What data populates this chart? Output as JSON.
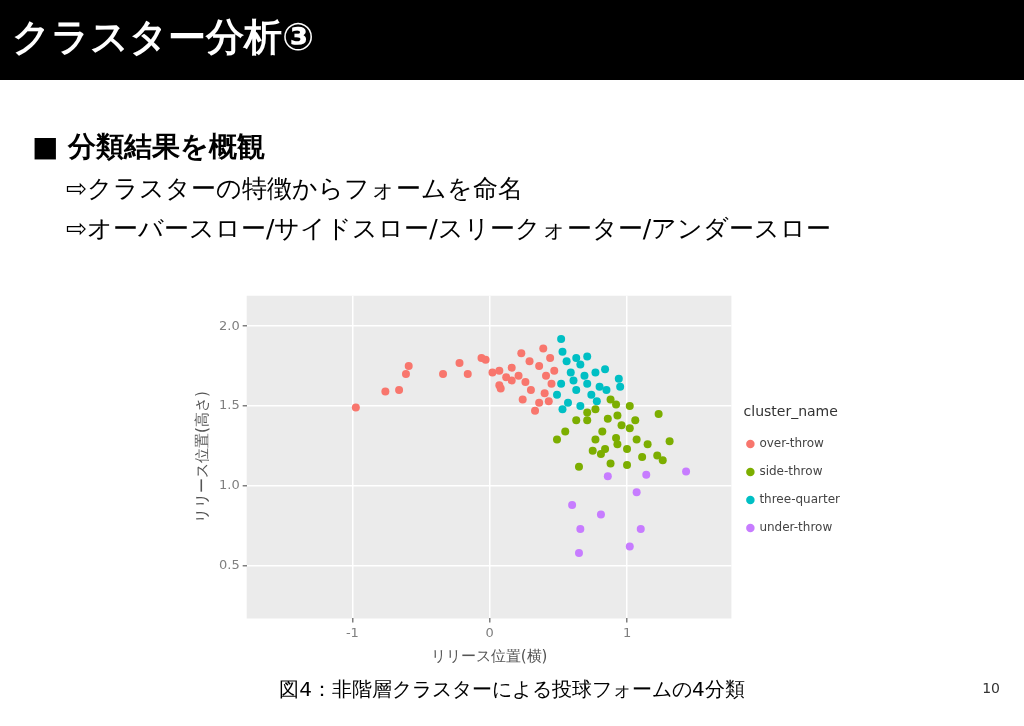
{
  "chart_data": {
    "type": "scatter",
    "title": "クラスター分析③",
    "subtitle": "■ 分類結果を概観",
    "annotations": [
      "⇨クラスターの特徴からフォームを命名",
      "⇨オーバースロー/サイドスロー/スリークォーター/アンダースロー",
      "図4：非階層クラスターによる投球フォームの4分類",
      "10"
    ],
    "xlabel": "リリース位置(横)",
    "ylabel": "リリース位置(高さ)",
    "legend_title": "cluster_name",
    "legend": "right",
    "grid": true,
    "marker": "circle",
    "xlim": [
      -1.77,
      1.76
    ],
    "xticks": [
      -1,
      0,
      1
    ],
    "ylim": [
      0.17,
      2.19
    ],
    "yticks": [
      0.5,
      {
        "value": 1,
        "label": "1.0"
      },
      1.5,
      {
        "value": 2,
        "label": "2.0"
      }
    ],
    "series": [
      {
        "name": "over-throw",
        "color": "#f8766d",
        "x": [
          -0.975,
          -0.76,
          -0.66,
          -0.61,
          -0.59,
          -0.34,
          -0.22,
          -0.16,
          -0.06,
          -0.03,
          0.02,
          0.07,
          0.07,
          0.08,
          0.16,
          0.23,
          0.39,
          0.16,
          0.24,
          0.33,
          0.36,
          0.3,
          0.41,
          0.44,
          0.29,
          0.21,
          0.4,
          0.45,
          0.36,
          0.26,
          0.43,
          0.12,
          0.47
        ],
        "values": [
          1.49,
          1.59,
          1.6,
          1.7,
          1.75,
          1.7,
          1.77,
          1.7,
          1.8,
          1.79,
          1.71,
          1.72,
          1.63,
          1.61,
          1.74,
          1.83,
          1.86,
          1.66,
          1.54,
          1.47,
          1.52,
          1.6,
          1.69,
          1.8,
          1.78,
          1.69,
          1.58,
          1.64,
          1.75,
          1.65,
          1.53,
          1.68,
          1.72
        ]
      },
      {
        "name": "side-throw",
        "color": "#7cae00",
        "x": [
          0.49,
          0.55,
          0.63,
          0.65,
          0.71,
          0.75,
          0.77,
          0.81,
          0.84,
          0.86,
          0.88,
          0.82,
          0.88,
          0.92,
          0.93,
          0.92,
          0.93,
          1.0,
          1.0,
          1.02,
          1.02,
          1.06,
          1.07,
          1.15,
          1.11,
          1.22,
          1.26,
          1.23,
          1.31,
          0.77,
          0.71,
          0.96
        ],
        "values": [
          1.29,
          1.34,
          1.41,
          1.12,
          1.41,
          1.22,
          1.29,
          1.2,
          1.23,
          1.42,
          1.14,
          1.34,
          1.54,
          1.51,
          1.44,
          1.3,
          1.26,
          1.23,
          1.13,
          1.5,
          1.36,
          1.41,
          1.29,
          1.26,
          1.18,
          1.19,
          1.16,
          1.45,
          1.28,
          1.48,
          1.46,
          1.38
        ]
      },
      {
        "name": "three-quarter",
        "color": "#00bfc4",
        "x": [
          0.52,
          0.53,
          0.71,
          0.84,
          0.94,
          0.95,
          0.85,
          0.53,
          0.49,
          0.63,
          0.59,
          0.69,
          0.77,
          0.52,
          0.63,
          0.74,
          0.57,
          0.66,
          0.8,
          0.61,
          0.71,
          0.56,
          0.66,
          0.78
        ],
        "values": [
          1.92,
          1.84,
          1.81,
          1.73,
          1.67,
          1.62,
          1.6,
          1.48,
          1.57,
          1.8,
          1.71,
          1.69,
          1.71,
          1.64,
          1.6,
          1.57,
          1.52,
          1.5,
          1.62,
          1.66,
          1.64,
          1.78,
          1.76,
          1.53
        ]
      },
      {
        "name": "under-throw",
        "color": "#c77cff",
        "x": [
          0.86,
          1.14,
          1.43,
          1.07,
          0.6,
          0.81,
          0.66,
          1.1,
          1.02,
          0.65
        ],
        "values": [
          1.06,
          1.07,
          1.09,
          0.96,
          0.88,
          0.82,
          0.73,
          0.73,
          0.62,
          0.58
        ]
      }
    ]
  }
}
